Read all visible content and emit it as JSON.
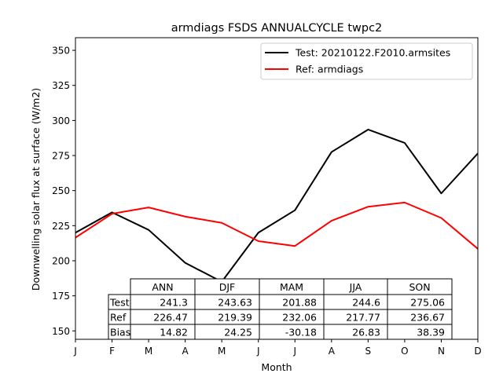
{
  "chart_data": {
    "type": "line",
    "title": "armdiags FSDS ANNUALCYCLE twpc2",
    "xlabel": "Month",
    "ylabel": "Downwelling solar flux at surface (W/m2)",
    "categories": [
      "J",
      "F",
      "M",
      "A",
      "M",
      "J",
      "J",
      "A",
      "S",
      "O",
      "N",
      "D"
    ],
    "ylim": [
      144,
      359
    ],
    "yticks": [
      150,
      175,
      200,
      225,
      250,
      275,
      300,
      325,
      350
    ],
    "grid": false,
    "legend_position": "top-right",
    "series": [
      {
        "name": "Test: 20210122.F2010.armsites",
        "color": "#000000",
        "values": [
          220,
          234.5,
          222,
          198.5,
          185,
          220,
          236,
          277.5,
          293.5,
          284,
          248,
          276.5
        ]
      },
      {
        "name": "Ref: armdiags",
        "color": "#ff0000",
        "values": [
          216.5,
          233.5,
          238,
          231.5,
          227,
          214,
          210.5,
          228.5,
          238.5,
          241.5,
          230.5,
          208.5
        ]
      }
    ],
    "table": {
      "columns": [
        "ANN",
        "DJF",
        "MAM",
        "JJA",
        "SON"
      ],
      "rows": [
        {
          "label": "Test",
          "values": [
            "241.3",
            "243.63",
            "201.88",
            "244.6",
            "275.06"
          ]
        },
        {
          "label": "Ref",
          "values": [
            "226.47",
            "219.39",
            "232.06",
            "217.77",
            "236.67"
          ]
        },
        {
          "label": "Bias",
          "values": [
            "14.82",
            "24.25",
            "-30.18",
            "26.83",
            "38.39"
          ]
        }
      ]
    }
  }
}
